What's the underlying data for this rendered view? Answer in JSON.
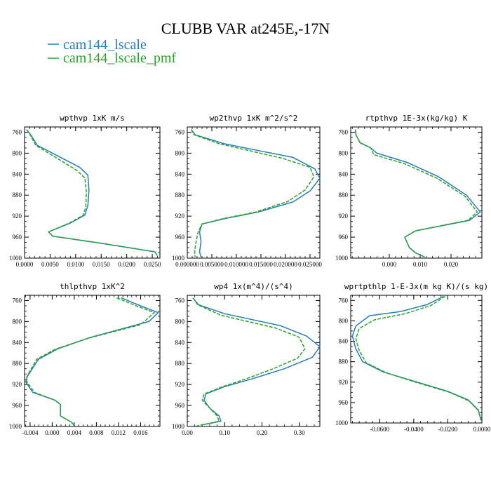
{
  "title": "CLUBB VAR at245E,-17N",
  "colors": {
    "blue": "#2a7bb6",
    "green": "#2ca02c"
  },
  "legend": [
    {
      "name": "cam144_lscale",
      "color": "#2a7bb6",
      "style": "solid"
    },
    {
      "name": "cam144_lscale_pmf",
      "color": "#2ca02c",
      "style": "dashed"
    }
  ],
  "chart_data": [
    {
      "type": "line",
      "title": "wpthvp  1xK m/s",
      "xlim": [
        0,
        0.0265
      ],
      "ylim": [
        1000,
        750
      ],
      "xticks": [
        0,
        0.005,
        0.01,
        0.015,
        0.02,
        0.025
      ],
      "xticklabels": [
        "0.0000",
        "0.0050",
        "0.0100",
        "0.0150",
        "0.0200",
        "0.0250"
      ],
      "yticks": [
        760,
        800,
        840,
        880,
        920,
        960,
        1000
      ],
      "yticklabels": [
        "760",
        "800",
        "840",
        "880",
        "920",
        "960",
        "1000"
      ],
      "series": [
        {
          "name": "cam144_lscale",
          "points": [
            [
              0.0004,
              755
            ],
            [
              0.0012,
              765
            ],
            [
              0.0025,
              785
            ],
            [
              0.0108,
              827
            ],
            [
              0.0124,
              842
            ],
            [
              0.0126,
              870
            ],
            [
              0.0124,
              900
            ],
            [
              0.0118,
              918
            ],
            [
              0.009,
              933
            ],
            [
              0.0047,
              950
            ],
            [
              0.0055,
              958
            ],
            [
              0.0145,
              971
            ],
            [
              0.0255,
              988
            ],
            [
              0.026,
              995
            ]
          ]
        },
        {
          "name": "cam144_lscale_pmf",
          "points": [
            [
              0.0004,
              755
            ],
            [
              0.0011,
              765
            ],
            [
              0.0022,
              785
            ],
            [
              0.0101,
              832
            ],
            [
              0.0118,
              847
            ],
            [
              0.0121,
              872
            ],
            [
              0.012,
              902
            ],
            [
              0.0115,
              918
            ],
            [
              0.0088,
              933
            ],
            [
              0.0047,
              950
            ],
            [
              0.0055,
              958
            ],
            [
              0.0145,
              971
            ],
            [
              0.0255,
              988
            ],
            [
              0.026,
              995
            ]
          ]
        }
      ]
    },
    {
      "type": "line",
      "title": "wp2thvp  1xK m^2/s^2",
      "xlim": [
        0,
        0.027
      ],
      "ylim": [
        1000,
        750
      ],
      "xticks": [
        0,
        0.005,
        0.01,
        0.015,
        0.02,
        0.025
      ],
      "xticklabels": [
        "0.000000",
        "0.005000",
        "0.010000",
        "0.015000",
        "0.020000",
        "0.025000"
      ],
      "yticks": [
        760,
        800,
        840,
        880,
        920,
        960,
        1000
      ],
      "yticklabels": [
        "760",
        "800",
        "840",
        "880",
        "920",
        "960",
        "1000"
      ],
      "series": [
        {
          "name": "cam144_lscale",
          "points": [
            [
              0.0008,
              755
            ],
            [
              0.0016,
              765
            ],
            [
              0.0075,
              782
            ],
            [
              0.0215,
              808
            ],
            [
              0.026,
              830
            ],
            [
              0.027,
              848
            ],
            [
              0.025,
              872
            ],
            [
              0.0215,
              893
            ],
            [
              0.0145,
              912
            ],
            [
              0.0075,
              925
            ],
            [
              0.003,
              935
            ],
            [
              0.0025,
              950
            ],
            [
              0.0028,
              968
            ],
            [
              0.0025,
              988
            ],
            [
              0.0028,
              998
            ]
          ]
        },
        {
          "name": "cam144_lscale_pmf",
          "points": [
            [
              0.0008,
              755
            ],
            [
              0.0014,
              765
            ],
            [
              0.0065,
              782
            ],
            [
              0.0195,
              810
            ],
            [
              0.025,
              827
            ],
            [
              0.0258,
              845
            ],
            [
              0.024,
              870
            ],
            [
              0.0205,
              892
            ],
            [
              0.014,
              912
            ],
            [
              0.0072,
              925
            ],
            [
              0.003,
              935
            ],
            [
              0.0022,
              950
            ],
            [
              0.0018,
              968
            ],
            [
              0.0015,
              988
            ],
            [
              0.0016,
              998
            ]
          ]
        }
      ]
    },
    {
      "type": "line",
      "title": "rtpthvp  1E-3x(kg/kg) K",
      "xlim": [
        -0.0125,
        0.03
      ],
      "ylim": [
        1000,
        750
      ],
      "xticks": [
        0,
        0.01,
        0.02
      ],
      "xticklabels": [
        "0.000",
        "0.010",
        "0.020"
      ],
      "yticks": [
        760,
        800,
        840,
        880,
        920,
        960,
        1000
      ],
      "yticklabels": [
        "760",
        "800",
        "840",
        "880",
        "920",
        "960",
        "1000"
      ],
      "series": [
        {
          "name": "cam144_lscale",
          "points": [
            [
              -0.011,
              755
            ],
            [
              -0.0108,
              765
            ],
            [
              -0.0095,
              780
            ],
            [
              -0.006,
              790
            ],
            [
              -0.004,
              800
            ],
            [
              0.006,
              818
            ],
            [
              0.016,
              845
            ],
            [
              0.025,
              880
            ],
            [
              0.0295,
              912
            ],
            [
              0.026,
              928
            ],
            [
              0.0085,
              948
            ],
            [
              0.005,
              960
            ],
            [
              0.0065,
              980
            ],
            [
              0.0085,
              990
            ],
            [
              0.0115,
              998
            ]
          ]
        },
        {
          "name": "cam144_lscale_pmf",
          "points": [
            [
              -0.011,
              755
            ],
            [
              -0.0108,
              765
            ],
            [
              -0.0095,
              780
            ],
            [
              -0.006,
              790
            ],
            [
              -0.005,
              803
            ],
            [
              0.005,
              820
            ],
            [
              0.0155,
              848
            ],
            [
              0.0245,
              882
            ],
            [
              0.0285,
              912
            ],
            [
              0.0255,
              928
            ],
            [
              0.0085,
              948
            ],
            [
              0.005,
              960
            ],
            [
              0.0065,
              980
            ],
            [
              0.0085,
              990
            ],
            [
              0.0115,
              998
            ]
          ]
        }
      ]
    },
    {
      "type": "line",
      "title": "thlpthvp  1xK^2",
      "xlim": [
        -0.005,
        0.0195
      ],
      "ylim": [
        1000,
        750
      ],
      "xticks": [
        -0.004,
        0,
        0.004,
        0.008,
        0.012,
        0.016
      ],
      "xticklabels": [
        "-0.004",
        "0.000",
        "0.004",
        "0.008",
        "0.012",
        "0.016"
      ],
      "yticks": [
        760,
        800,
        840,
        880,
        920,
        960,
        1000
      ],
      "yticklabels": [
        "760",
        "800",
        "840",
        "880",
        "920",
        "960",
        "1000"
      ],
      "series": [
        {
          "name": "cam144_lscale",
          "points": [
            [
              0.0125,
              755
            ],
            [
              0.016,
              770
            ],
            [
              0.0192,
              783
            ],
            [
              0.0175,
              800
            ],
            [
              0.007,
              830
            ],
            [
              0.001,
              852
            ],
            [
              -0.0025,
              872
            ],
            [
              -0.0045,
              905
            ],
            [
              -0.0048,
              915
            ],
            [
              -0.0035,
              935
            ],
            [
              0.0005,
              950
            ],
            [
              0.0015,
              958
            ],
            [
              0.0015,
              968
            ],
            [
              0.0015,
              980
            ],
            [
              0.0035,
              992
            ],
            [
              0.004,
              998
            ]
          ]
        },
        {
          "name": "cam144_lscale_pmf",
          "points": [
            [
              0.0117,
              755
            ],
            [
              0.0152,
              770
            ],
            [
              0.0185,
              783
            ],
            [
              0.016,
              806
            ],
            [
              0.0065,
              832
            ],
            [
              0.0005,
              853
            ],
            [
              -0.0028,
              872
            ],
            [
              -0.0046,
              905
            ],
            [
              -0.0046,
              915
            ],
            [
              -0.0032,
              935
            ],
            [
              0.0005,
              950
            ],
            [
              0.0015,
              958
            ],
            [
              0.0015,
              968
            ],
            [
              0.0015,
              980
            ],
            [
              0.0035,
              992
            ],
            [
              0.004,
              998
            ]
          ]
        }
      ]
    },
    {
      "type": "line",
      "title": "wp4  1x(m^4)/(s^4)",
      "xlim": [
        0,
        0.355
      ],
      "ylim": [
        1000,
        750
      ],
      "xticks": [
        0,
        0.1,
        0.2,
        0.3
      ],
      "xticklabels": [
        "0.00",
        "0.10",
        "0.20",
        "0.30"
      ],
      "yticks": [
        760,
        800,
        840,
        880,
        920,
        960,
        1000
      ],
      "yticklabels": [
        "760",
        "800",
        "840",
        "880",
        "920",
        "960",
        "1000"
      ],
      "series": [
        {
          "name": "cam144_lscale",
          "points": [
            [
              0.015,
              755
            ],
            [
              0.03,
              768
            ],
            [
              0.1,
              785
            ],
            [
              0.25,
              808
            ],
            [
              0.32,
              828
            ],
            [
              0.355,
              848
            ],
            [
              0.335,
              868
            ],
            [
              0.26,
              890
            ],
            [
              0.17,
              910
            ],
            [
              0.1,
              924
            ],
            [
              0.05,
              938
            ],
            [
              0.045,
              950
            ],
            [
              0.06,
              965
            ],
            [
              0.085,
              980
            ],
            [
              0.09,
              990
            ],
            [
              0.04,
              997
            ]
          ]
        },
        {
          "name": "cam144_lscale_pmf",
          "points": [
            [
              0.015,
              755
            ],
            [
              0.028,
              768
            ],
            [
              0.09,
              788
            ],
            [
              0.235,
              812
            ],
            [
              0.3,
              830
            ],
            [
              0.315,
              852
            ],
            [
              0.295,
              870
            ],
            [
              0.23,
              890
            ],
            [
              0.155,
              910
            ],
            [
              0.095,
              924
            ],
            [
              0.045,
              938
            ],
            [
              0.04,
              950
            ],
            [
              0.06,
              965
            ],
            [
              0.08,
              980
            ],
            [
              0.085,
              990
            ],
            [
              0.025,
              999
            ]
          ]
        }
      ]
    },
    {
      "type": "line",
      "title": "wprtpthlp  1-E-3x(m kg K)/(s kg)",
      "xlim": [
        -0.077,
        0
      ],
      "ylim": [
        1000,
        750
      ],
      "xticks": [
        -0.06,
        -0.04,
        -0.02,
        0
      ],
      "xticklabels": [
        "-0.0600",
        "-0.0400",
        "-0.0200",
        "0.0000"
      ],
      "yticks": [
        760,
        800,
        840,
        880,
        920,
        960,
        1000
      ],
      "yticklabels": [
        "760",
        "800",
        "840",
        "880",
        "920",
        "960",
        "1000"
      ],
      "series": [
        {
          "name": "cam144_lscale",
          "points": [
            [
              -0.0225,
              752
            ],
            [
              -0.032,
              768
            ],
            [
              -0.048,
              782
            ],
            [
              -0.066,
              790
            ],
            [
              -0.074,
              810
            ],
            [
              -0.076,
              830
            ],
            [
              -0.074,
              855
            ],
            [
              -0.07,
              880
            ],
            [
              -0.058,
              900
            ],
            [
              -0.04,
              918
            ],
            [
              -0.02,
              938
            ],
            [
              -0.008,
              955
            ],
            [
              -0.002,
              975
            ],
            [
              -0.0005,
              995
            ]
          ]
        },
        {
          "name": "cam144_lscale_pmf",
          "points": [
            [
              -0.0215,
              752
            ],
            [
              -0.03,
              770
            ],
            [
              -0.045,
              786
            ],
            [
              -0.063,
              798
            ],
            [
              -0.072,
              815
            ],
            [
              -0.074,
              835
            ],
            [
              -0.072,
              858
            ],
            [
              -0.068,
              882
            ],
            [
              -0.056,
              902
            ],
            [
              -0.039,
              920
            ],
            [
              -0.019,
              940
            ],
            [
              -0.0075,
              957
            ],
            [
              -0.002,
              976
            ],
            [
              -0.0005,
              995
            ]
          ]
        }
      ]
    }
  ]
}
